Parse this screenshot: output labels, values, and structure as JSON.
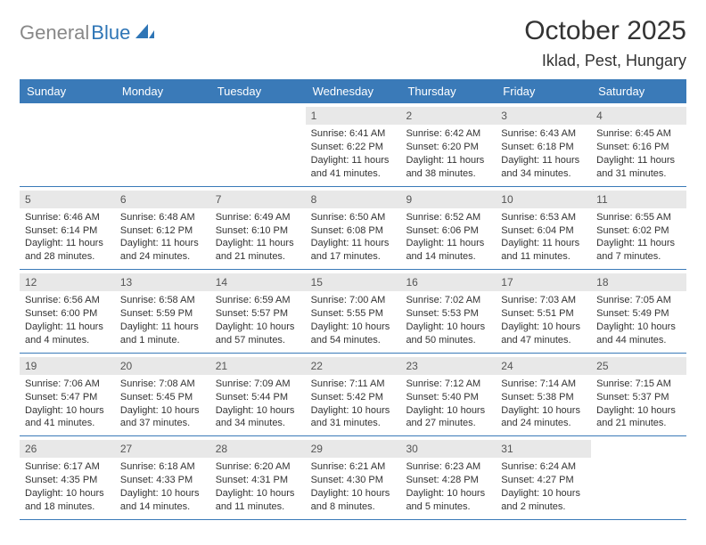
{
  "logo": {
    "text_gray": "General",
    "text_blue": "Blue"
  },
  "title": "October 2025",
  "location": "Iklad, Pest, Hungary",
  "colors": {
    "header_bg": "#3a7ab8",
    "header_text": "#ffffff",
    "band_bg": "#e8e8e8",
    "rule": "#3a7ab8",
    "text": "#333333",
    "logo_gray": "#888888",
    "logo_blue": "#2e75b6"
  },
  "day_names": [
    "Sunday",
    "Monday",
    "Tuesday",
    "Wednesday",
    "Thursday",
    "Friday",
    "Saturday"
  ],
  "weeks": [
    [
      {
        "n": "",
        "empty": true
      },
      {
        "n": "",
        "empty": true
      },
      {
        "n": "",
        "empty": true
      },
      {
        "n": "1",
        "sr": "Sunrise: 6:41 AM",
        "ss": "Sunset: 6:22 PM",
        "dl": "Daylight: 11 hours and 41 minutes."
      },
      {
        "n": "2",
        "sr": "Sunrise: 6:42 AM",
        "ss": "Sunset: 6:20 PM",
        "dl": "Daylight: 11 hours and 38 minutes."
      },
      {
        "n": "3",
        "sr": "Sunrise: 6:43 AM",
        "ss": "Sunset: 6:18 PM",
        "dl": "Daylight: 11 hours and 34 minutes."
      },
      {
        "n": "4",
        "sr": "Sunrise: 6:45 AM",
        "ss": "Sunset: 6:16 PM",
        "dl": "Daylight: 11 hours and 31 minutes."
      }
    ],
    [
      {
        "n": "5",
        "sr": "Sunrise: 6:46 AM",
        "ss": "Sunset: 6:14 PM",
        "dl": "Daylight: 11 hours and 28 minutes."
      },
      {
        "n": "6",
        "sr": "Sunrise: 6:48 AM",
        "ss": "Sunset: 6:12 PM",
        "dl": "Daylight: 11 hours and 24 minutes."
      },
      {
        "n": "7",
        "sr": "Sunrise: 6:49 AM",
        "ss": "Sunset: 6:10 PM",
        "dl": "Daylight: 11 hours and 21 minutes."
      },
      {
        "n": "8",
        "sr": "Sunrise: 6:50 AM",
        "ss": "Sunset: 6:08 PM",
        "dl": "Daylight: 11 hours and 17 minutes."
      },
      {
        "n": "9",
        "sr": "Sunrise: 6:52 AM",
        "ss": "Sunset: 6:06 PM",
        "dl": "Daylight: 11 hours and 14 minutes."
      },
      {
        "n": "10",
        "sr": "Sunrise: 6:53 AM",
        "ss": "Sunset: 6:04 PM",
        "dl": "Daylight: 11 hours and 11 minutes."
      },
      {
        "n": "11",
        "sr": "Sunrise: 6:55 AM",
        "ss": "Sunset: 6:02 PM",
        "dl": "Daylight: 11 hours and 7 minutes."
      }
    ],
    [
      {
        "n": "12",
        "sr": "Sunrise: 6:56 AM",
        "ss": "Sunset: 6:00 PM",
        "dl": "Daylight: 11 hours and 4 minutes."
      },
      {
        "n": "13",
        "sr": "Sunrise: 6:58 AM",
        "ss": "Sunset: 5:59 PM",
        "dl": "Daylight: 11 hours and 1 minute."
      },
      {
        "n": "14",
        "sr": "Sunrise: 6:59 AM",
        "ss": "Sunset: 5:57 PM",
        "dl": "Daylight: 10 hours and 57 minutes."
      },
      {
        "n": "15",
        "sr": "Sunrise: 7:00 AM",
        "ss": "Sunset: 5:55 PM",
        "dl": "Daylight: 10 hours and 54 minutes."
      },
      {
        "n": "16",
        "sr": "Sunrise: 7:02 AM",
        "ss": "Sunset: 5:53 PM",
        "dl": "Daylight: 10 hours and 50 minutes."
      },
      {
        "n": "17",
        "sr": "Sunrise: 7:03 AM",
        "ss": "Sunset: 5:51 PM",
        "dl": "Daylight: 10 hours and 47 minutes."
      },
      {
        "n": "18",
        "sr": "Sunrise: 7:05 AM",
        "ss": "Sunset: 5:49 PM",
        "dl": "Daylight: 10 hours and 44 minutes."
      }
    ],
    [
      {
        "n": "19",
        "sr": "Sunrise: 7:06 AM",
        "ss": "Sunset: 5:47 PM",
        "dl": "Daylight: 10 hours and 41 minutes."
      },
      {
        "n": "20",
        "sr": "Sunrise: 7:08 AM",
        "ss": "Sunset: 5:45 PM",
        "dl": "Daylight: 10 hours and 37 minutes."
      },
      {
        "n": "21",
        "sr": "Sunrise: 7:09 AM",
        "ss": "Sunset: 5:44 PM",
        "dl": "Daylight: 10 hours and 34 minutes."
      },
      {
        "n": "22",
        "sr": "Sunrise: 7:11 AM",
        "ss": "Sunset: 5:42 PM",
        "dl": "Daylight: 10 hours and 31 minutes."
      },
      {
        "n": "23",
        "sr": "Sunrise: 7:12 AM",
        "ss": "Sunset: 5:40 PM",
        "dl": "Daylight: 10 hours and 27 minutes."
      },
      {
        "n": "24",
        "sr": "Sunrise: 7:14 AM",
        "ss": "Sunset: 5:38 PM",
        "dl": "Daylight: 10 hours and 24 minutes."
      },
      {
        "n": "25",
        "sr": "Sunrise: 7:15 AM",
        "ss": "Sunset: 5:37 PM",
        "dl": "Daylight: 10 hours and 21 minutes."
      }
    ],
    [
      {
        "n": "26",
        "sr": "Sunrise: 6:17 AM",
        "ss": "Sunset: 4:35 PM",
        "dl": "Daylight: 10 hours and 18 minutes."
      },
      {
        "n": "27",
        "sr": "Sunrise: 6:18 AM",
        "ss": "Sunset: 4:33 PM",
        "dl": "Daylight: 10 hours and 14 minutes."
      },
      {
        "n": "28",
        "sr": "Sunrise: 6:20 AM",
        "ss": "Sunset: 4:31 PM",
        "dl": "Daylight: 10 hours and 11 minutes."
      },
      {
        "n": "29",
        "sr": "Sunrise: 6:21 AM",
        "ss": "Sunset: 4:30 PM",
        "dl": "Daylight: 10 hours and 8 minutes."
      },
      {
        "n": "30",
        "sr": "Sunrise: 6:23 AM",
        "ss": "Sunset: 4:28 PM",
        "dl": "Daylight: 10 hours and 5 minutes."
      },
      {
        "n": "31",
        "sr": "Sunrise: 6:24 AM",
        "ss": "Sunset: 4:27 PM",
        "dl": "Daylight: 10 hours and 2 minutes."
      },
      {
        "n": "",
        "empty": true
      }
    ]
  ]
}
